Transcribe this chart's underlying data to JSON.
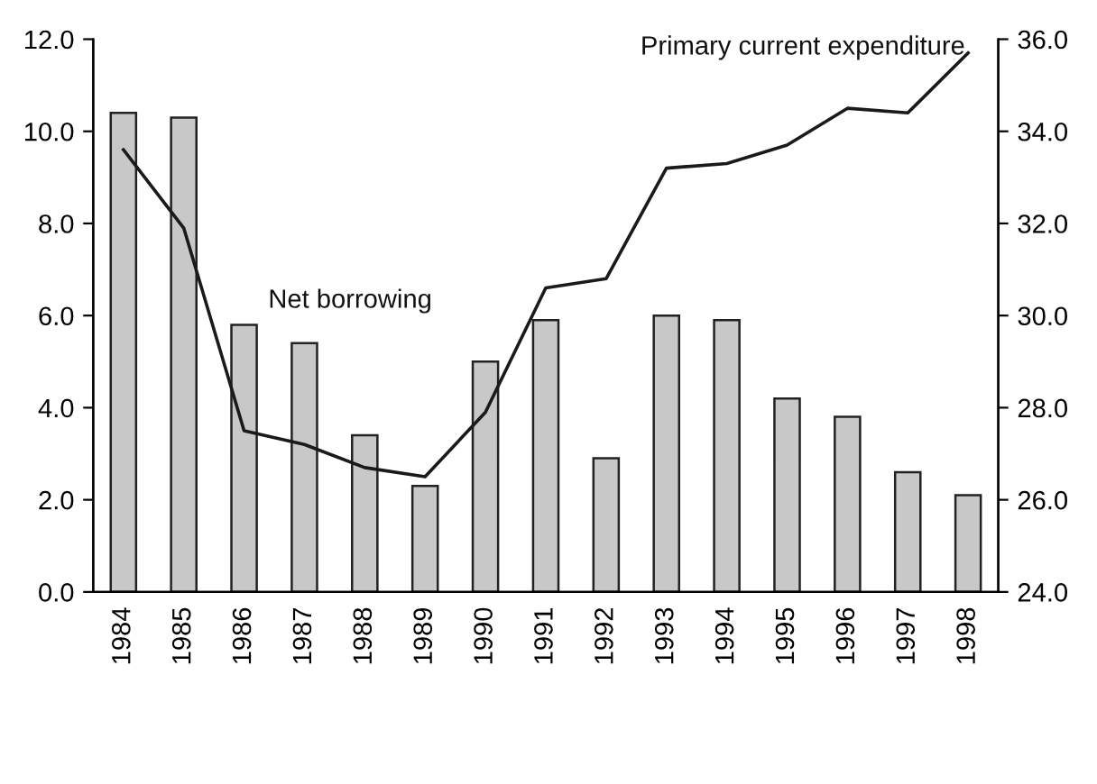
{
  "chart_data": {
    "type": "bar",
    "categories": [
      "1984",
      "1985",
      "1986",
      "1987",
      "1988",
      "1989",
      "1990",
      "1991",
      "1992",
      "1993",
      "1994",
      "1995",
      "1996",
      "1997",
      "1998"
    ],
    "series": [
      {
        "name": "Net borrowing",
        "color": "#c8c8c8",
        "values": [
          10.4,
          10.3,
          5.8,
          5.4,
          3.4,
          2.3,
          5.0,
          5.9,
          2.9,
          6.0,
          5.9,
          4.2,
          3.8,
          2.6,
          2.1
        ]
      },
      {
        "name": "Primary current expenditure",
        "type": "line",
        "axis": "y2",
        "color": "#1a1a1a",
        "values": [
          33.6,
          31.9,
          27.5,
          27.2,
          26.7,
          26.5,
          27.9,
          30.6,
          30.8,
          33.2,
          33.3,
          33.7,
          34.5,
          34.4,
          35.7
        ]
      }
    ],
    "ylim": [
      0,
      12
    ],
    "yticks": [
      {
        "value": 0,
        "label": "0.0"
      },
      {
        "value": 2,
        "label": "2.0"
      },
      {
        "value": 4,
        "label": "4.0"
      },
      {
        "value": 6,
        "label": "6.0"
      },
      {
        "value": 8,
        "label": "8.0"
      },
      {
        "value": 10,
        "label": "10.0"
      },
      {
        "value": 12,
        "label": "12.0"
      }
    ],
    "y2lim": [
      24,
      36
    ],
    "y2ticks": [
      {
        "value": 24,
        "label": "24.0"
      },
      {
        "value": 26,
        "label": "26.0"
      },
      {
        "value": 28,
        "label": "28.0"
      },
      {
        "value": 30,
        "label": "30.0"
      },
      {
        "value": 32,
        "label": "32.0"
      },
      {
        "value": 34,
        "label": "34.0"
      },
      {
        "value": 36,
        "label": "36.0"
      }
    ],
    "grid": false,
    "legend": false,
    "marker": "none",
    "line_style": "solid"
  }
}
